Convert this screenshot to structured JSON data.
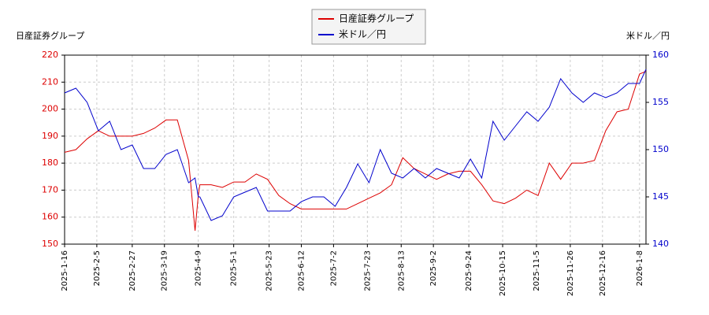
{
  "chart_data": {
    "type": "line",
    "y_label": "日産証券グループ",
    "y2_label": "米ドル／円",
    "x": [
      "2025-1-16",
      "2025-1-23",
      "2025-1-30",
      "2025-2-6",
      "2025-2-13",
      "2025-2-20",
      "2025-2-27",
      "2025-3-6",
      "2025-3-13",
      "2025-3-20",
      "2025-3-27",
      "2025-4-3",
      "2025-4-7",
      "2025-4-9",
      "2025-4-10",
      "2025-4-17",
      "2025-4-24",
      "2025-5-1",
      "2025-5-8",
      "2025-5-15",
      "2025-5-22",
      "2025-5-29",
      "2025-6-5",
      "2025-6-12",
      "2025-6-19",
      "2025-6-26",
      "2025-7-3",
      "2025-7-10",
      "2025-7-17",
      "2025-7-24",
      "2025-7-31",
      "2025-8-7",
      "2025-8-14",
      "2025-8-21",
      "2025-8-28",
      "2025-9-4",
      "2025-9-11",
      "2025-9-18",
      "2025-9-25",
      "2025-10-2",
      "2025-10-9",
      "2025-10-16",
      "2025-10-23",
      "2025-10-30",
      "2025-11-6",
      "2025-11-13",
      "2025-11-20",
      "2025-11-27",
      "2025-12-4",
      "2025-12-11",
      "2025-12-18",
      "2025-12-25",
      "2026-1-1",
      "2026-1-8",
      "2026-1-12"
    ],
    "series": [
      {
        "name": "日産証券グループ",
        "color": "#dd0000",
        "values": [
          184,
          185,
          189,
          192,
          190,
          190,
          190,
          191,
          193,
          196,
          196,
          181,
          155,
          168,
          172,
          172,
          171,
          173,
          173,
          176,
          174,
          168,
          165,
          163,
          163,
          163,
          163,
          163,
          165,
          167,
          169,
          172,
          182,
          178,
          176,
          174,
          176,
          177,
          177,
          172,
          166,
          165,
          167,
          170,
          168,
          180,
          174,
          180,
          180,
          181,
          192,
          199,
          200,
          213,
          214
        ]
      },
      {
        "name": "米ドル／円",
        "color": "#0000cc",
        "axis": "y2",
        "values": [
          156,
          156.5,
          155,
          152,
          153,
          150,
          150.5,
          148,
          148,
          149.5,
          150,
          146.5,
          147,
          145,
          145,
          142.5,
          143,
          145,
          145.5,
          146,
          143.5,
          143.5,
          143.5,
          144.5,
          145,
          145,
          144,
          146,
          148.5,
          146.5,
          150,
          147.5,
          147,
          148,
          147,
          148,
          147.5,
          147,
          149,
          147,
          153,
          151,
          152.5,
          154,
          153,
          154.5,
          157.5,
          156,
          155,
          156,
          155.5,
          156,
          157,
          157,
          158.5
        ]
      }
    ],
    "xlim": [
      "2025-1-16",
      "2026-1-12"
    ],
    "xticks": [
      "2025-1-16",
      "2025-2-5",
      "2025-2-27",
      "2025-3-19",
      "2025-4-9",
      "2025-5-1",
      "2025-5-23",
      "2025-6-12",
      "2025-7-2",
      "2025-7-23",
      "2025-8-13",
      "2025-9-2",
      "2025-9-24",
      "2025-10-15",
      "2025-11-5",
      "2025-11-26",
      "2025-12-16",
      "2026-1-8"
    ],
    "ylim": [
      150,
      220
    ],
    "yticks": [
      150,
      160,
      170,
      180,
      190,
      200,
      210,
      220
    ],
    "y2lim": [
      140,
      160
    ],
    "y2ticks": [
      140,
      145,
      150,
      155,
      160
    ],
    "grid": true,
    "legend": "top"
  }
}
